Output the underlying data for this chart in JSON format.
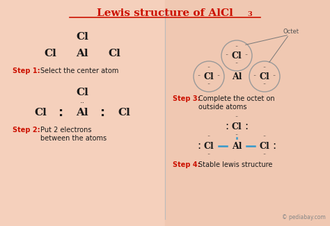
{
  "bg_left": "#f5d0bc",
  "bg_right": "#f0c8b2",
  "divider_color": "#bbbbbb",
  "dark_color": "#1a1a1a",
  "red_color": "#cc1100",
  "blue_color": "#3399cc",
  "gray_color": "#888888",
  "title": "Lewis structure of AlCl",
  "title_sub": "3",
  "title_color": "#cc1100",
  "credit": "© pediabay.com",
  "step1_bold": "Step 1:",
  "step1_text": " Select the center atom",
  "step2_bold": "Step 2:",
  "step2_text": " Put 2 electrons\n between the atoms",
  "step3_bold": "Step 3:",
  "step3_text": " Complete the octet on\n outside atoms",
  "step4_bold": "Step 4:",
  "step4_text": " Stable lewis structure"
}
